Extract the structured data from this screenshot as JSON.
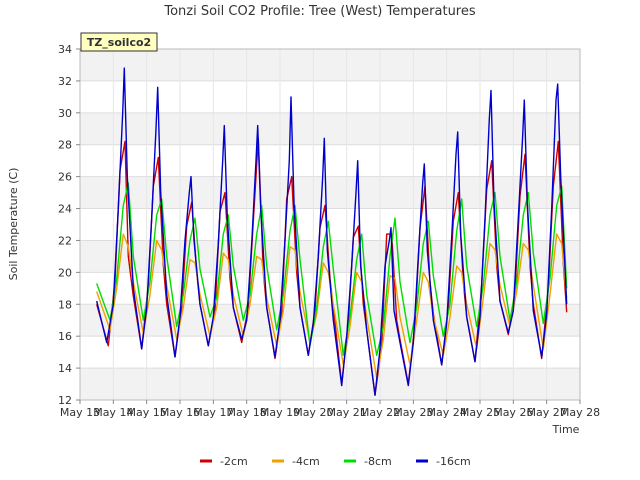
{
  "chart_data": {
    "type": "line",
    "title": "Tonzi Soil CO2 Profile: Tree (West) Temperatures",
    "xlabel": "Time",
    "ylabel": "Soil Temperature (C)",
    "badge": "TZ_soilco2",
    "grid": "horizontal bands",
    "legend_position": "bottom-center",
    "xlim": [
      13,
      28
    ],
    "ylim": [
      12,
      34
    ],
    "x_ticks": [
      13,
      14,
      15,
      16,
      17,
      18,
      19,
      20,
      21,
      22,
      23,
      24,
      25,
      26,
      27,
      28
    ],
    "x_tick_labels": [
      "May 13",
      "May 14",
      "May 15",
      "May 16",
      "May 17",
      "May 18",
      "May 19",
      "May 20",
      "May 21",
      "May 22",
      "May 23",
      "May 24",
      "May 25",
      "May 26",
      "May 27",
      "May 28"
    ],
    "y_ticks": [
      12,
      14,
      16,
      18,
      20,
      22,
      24,
      26,
      28,
      30,
      32,
      34
    ],
    "y_tick_labels": [
      "12",
      "14",
      "16",
      "18",
      "20",
      "22",
      "24",
      "26",
      "28",
      "30",
      "32",
      "34"
    ],
    "series": [
      {
        "name": "-2cm",
        "color": "#cc0000",
        "x": [
          13.5,
          13.85,
          14.05,
          14.2,
          14.35,
          14.45,
          14.6,
          14.85,
          15.05,
          15.2,
          15.35,
          15.5,
          15.6,
          15.85,
          16.05,
          16.2,
          16.35,
          16.5,
          16.6,
          16.85,
          17.05,
          17.2,
          17.35,
          17.5,
          17.6,
          17.85,
          18.05,
          18.2,
          18.35,
          18.5,
          18.6,
          18.85,
          19.05,
          19.2,
          19.35,
          19.5,
          19.6,
          19.85,
          20.05,
          20.2,
          20.35,
          20.5,
          20.6,
          20.85,
          21.05,
          21.2,
          21.35,
          21.5,
          21.6,
          21.85,
          22.05,
          22.2,
          22.35,
          22.5,
          22.6,
          22.85,
          23.05,
          23.2,
          23.35,
          23.5,
          23.6,
          23.85,
          24.05,
          24.2,
          24.35,
          24.5,
          24.6,
          24.85,
          25.05,
          25.2,
          25.35,
          25.5,
          25.6,
          25.85,
          26.05,
          26.2,
          26.35,
          26.5,
          26.6,
          26.85,
          27.05,
          27.2,
          27.35,
          27.5,
          27.6
        ],
        "y": [
          18,
          15.4,
          19.5,
          26.4,
          28.2,
          21,
          18.5,
          15.2,
          19.2,
          25.4,
          27.2,
          20.5,
          18,
          14.7,
          17.8,
          22.9,
          24.4,
          20,
          18,
          15.4,
          17.6,
          23.8,
          25,
          19.6,
          17.8,
          15.6,
          17.8,
          23.2,
          28.4,
          20,
          17.8,
          14.6,
          17.4,
          24.6,
          26,
          20,
          17.8,
          14.8,
          17.6,
          22.8,
          24.2,
          19.6,
          17.8,
          13,
          16.8,
          22.2,
          22.9,
          18,
          16.4,
          12.3,
          15.4,
          22.4,
          22.4,
          17,
          15.8,
          13,
          16.8,
          22.8,
          25.4,
          19.4,
          17.4,
          14.2,
          17.8,
          23.2,
          25,
          19.4,
          17.2,
          14.4,
          19.2,
          25.2,
          27,
          20.4,
          18.2,
          16.1,
          18.8,
          24.8,
          27.4,
          20.4,
          18,
          14.6,
          19,
          25.4,
          28.2,
          20.6,
          17.5
        ]
      },
      {
        "name": "-4cm",
        "color": "#f0a000",
        "x": [
          13.5,
          13.9,
          14.1,
          14.3,
          14.45,
          14.6,
          14.9,
          15.1,
          15.3,
          15.45,
          15.6,
          15.9,
          16.1,
          16.3,
          16.45,
          16.6,
          16.9,
          17.1,
          17.3,
          17.45,
          17.6,
          17.9,
          18.1,
          18.3,
          18.45,
          18.6,
          18.9,
          19.1,
          19.3,
          19.45,
          19.6,
          19.9,
          20.1,
          20.3,
          20.45,
          20.6,
          20.9,
          21.1,
          21.3,
          21.45,
          21.6,
          21.9,
          22.1,
          22.3,
          22.45,
          22.6,
          22.9,
          23.1,
          23.3,
          23.45,
          23.6,
          23.9,
          24.1,
          24.3,
          24.45,
          24.6,
          24.9,
          25.1,
          25.3,
          25.45,
          25.6,
          25.9,
          26.1,
          26.3,
          26.45,
          26.6,
          26.9,
          27.1,
          27.3,
          27.45,
          27.6
        ],
        "y": [
          18.8,
          16.4,
          19,
          22.4,
          21.6,
          19.4,
          16.2,
          18.6,
          22,
          21.4,
          19.2,
          15.8,
          17.8,
          20.8,
          20.6,
          18.6,
          16,
          17.8,
          21.2,
          20.8,
          18.6,
          16,
          18,
          21,
          20.8,
          18.4,
          15.4,
          17.6,
          21.6,
          21.4,
          18.8,
          15.6,
          17.4,
          20.6,
          20,
          18,
          14.2,
          16.6,
          20,
          19.4,
          17.2,
          13.4,
          15.8,
          19.8,
          19.6,
          17.2,
          14.2,
          17,
          20,
          19.4,
          17.2,
          14.8,
          17.2,
          20.4,
          20,
          18,
          15.2,
          18.4,
          21.8,
          21.4,
          19.2,
          16.6,
          18.8,
          21.8,
          21.4,
          19.2,
          15.2,
          18.6,
          22.4,
          21.8,
          18.4
        ]
      },
      {
        "name": "-8cm",
        "color": "#00dd00",
        "x": [
          13.5,
          13.9,
          14.1,
          14.3,
          14.45,
          14.6,
          14.9,
          15.1,
          15.3,
          15.45,
          15.6,
          15.9,
          16.1,
          16.3,
          16.45,
          16.6,
          16.9,
          17.1,
          17.3,
          17.45,
          17.6,
          17.9,
          18.1,
          18.3,
          18.45,
          18.6,
          18.9,
          19.1,
          19.3,
          19.45,
          19.6,
          19.9,
          20.1,
          20.3,
          20.45,
          20.6,
          20.9,
          21.1,
          21.3,
          21.45,
          21.6,
          21.9,
          22.1,
          22.3,
          22.45,
          22.6,
          22.9,
          23.1,
          23.3,
          23.45,
          23.6,
          23.9,
          24.1,
          24.3,
          24.45,
          24.6,
          24.9,
          25.1,
          25.3,
          25.45,
          25.6,
          25.9,
          26.1,
          26.3,
          26.45,
          26.6,
          26.9,
          27.1,
          27.3,
          27.45,
          27.6
        ],
        "y": [
          19.3,
          17,
          19.6,
          24.2,
          25.6,
          21,
          17,
          19.4,
          23.6,
          24.6,
          21,
          16.6,
          18.6,
          22,
          23.4,
          20.2,
          17.2,
          18.4,
          22.4,
          23.6,
          20.4,
          17,
          18.6,
          22.4,
          24.2,
          20.4,
          16.4,
          18.6,
          22.6,
          24.2,
          20.8,
          15.4,
          17.8,
          21.6,
          23.2,
          20.2,
          14.8,
          17.2,
          20.8,
          22.4,
          18.6,
          14.8,
          16.6,
          21,
          23.4,
          19.4,
          15.6,
          17.8,
          21.8,
          23.2,
          19.8,
          16,
          18,
          22.6,
          24.6,
          20.4,
          16.6,
          19.2,
          23.6,
          25,
          21,
          17,
          19.4,
          23.6,
          25,
          21.2,
          16.8,
          19.6,
          24.2,
          25.4,
          19
        ]
      },
      {
        "name": "-16cm",
        "color": "#0000cc",
        "x": [
          13.5,
          13.8,
          14.0,
          14.15,
          14.28,
          14.33,
          14.42,
          14.6,
          14.85,
          15.0,
          15.15,
          15.28,
          15.33,
          15.42,
          15.6,
          15.85,
          16.0,
          16.15,
          16.28,
          16.33,
          16.42,
          16.6,
          16.85,
          17.0,
          17.15,
          17.28,
          17.33,
          17.42,
          17.6,
          17.85,
          18.0,
          18.15,
          18.28,
          18.33,
          18.42,
          18.6,
          18.85,
          19.0,
          19.15,
          19.28,
          19.33,
          19.42,
          19.6,
          19.85,
          20.0,
          20.15,
          20.28,
          20.33,
          20.42,
          20.6,
          20.85,
          21.0,
          21.15,
          21.28,
          21.33,
          21.42,
          21.6,
          21.85,
          22.0,
          22.15,
          22.28,
          22.33,
          22.42,
          22.6,
          22.85,
          23.0,
          23.15,
          23.28,
          23.33,
          23.42,
          23.6,
          23.85,
          24.0,
          24.15,
          24.28,
          24.33,
          24.42,
          24.6,
          24.85,
          25.0,
          25.15,
          25.28,
          25.33,
          25.42,
          25.6,
          25.85,
          26.0,
          26.15,
          26.28,
          26.33,
          26.42,
          26.6,
          26.85,
          27.0,
          27.15,
          27.28,
          27.33,
          27.42,
          27.6
        ],
        "y": [
          18.2,
          15.6,
          18,
          24,
          30,
          32.8,
          26,
          19,
          15.2,
          17.8,
          23.4,
          29,
          31.6,
          25,
          18.6,
          14.7,
          17.2,
          22,
          25,
          26,
          22,
          18,
          15.4,
          17.2,
          21.8,
          27,
          29.2,
          23.4,
          17.8,
          15.8,
          17,
          21.8,
          27,
          29.2,
          24,
          17.8,
          14.7,
          17,
          22,
          27,
          31,
          24.4,
          17.8,
          14.8,
          16.8,
          21,
          26,
          28.4,
          21.4,
          17,
          12.9,
          16,
          20.4,
          25,
          27,
          20.4,
          16.4,
          12.3,
          15.2,
          20.4,
          22,
          22.8,
          17.6,
          15.6,
          12.9,
          15.6,
          21,
          25.6,
          26.8,
          21.4,
          17,
          14.2,
          16.8,
          22.2,
          27.4,
          28.8,
          22.4,
          17.2,
          14.4,
          17.2,
          23.4,
          29.6,
          31.4,
          24.4,
          18.2,
          16.2,
          17.6,
          23.4,
          28.6,
          30.8,
          24.4,
          17.6,
          14.7,
          17.4,
          24,
          30.8,
          31.8,
          26,
          18
        ]
      }
    ]
  }
}
